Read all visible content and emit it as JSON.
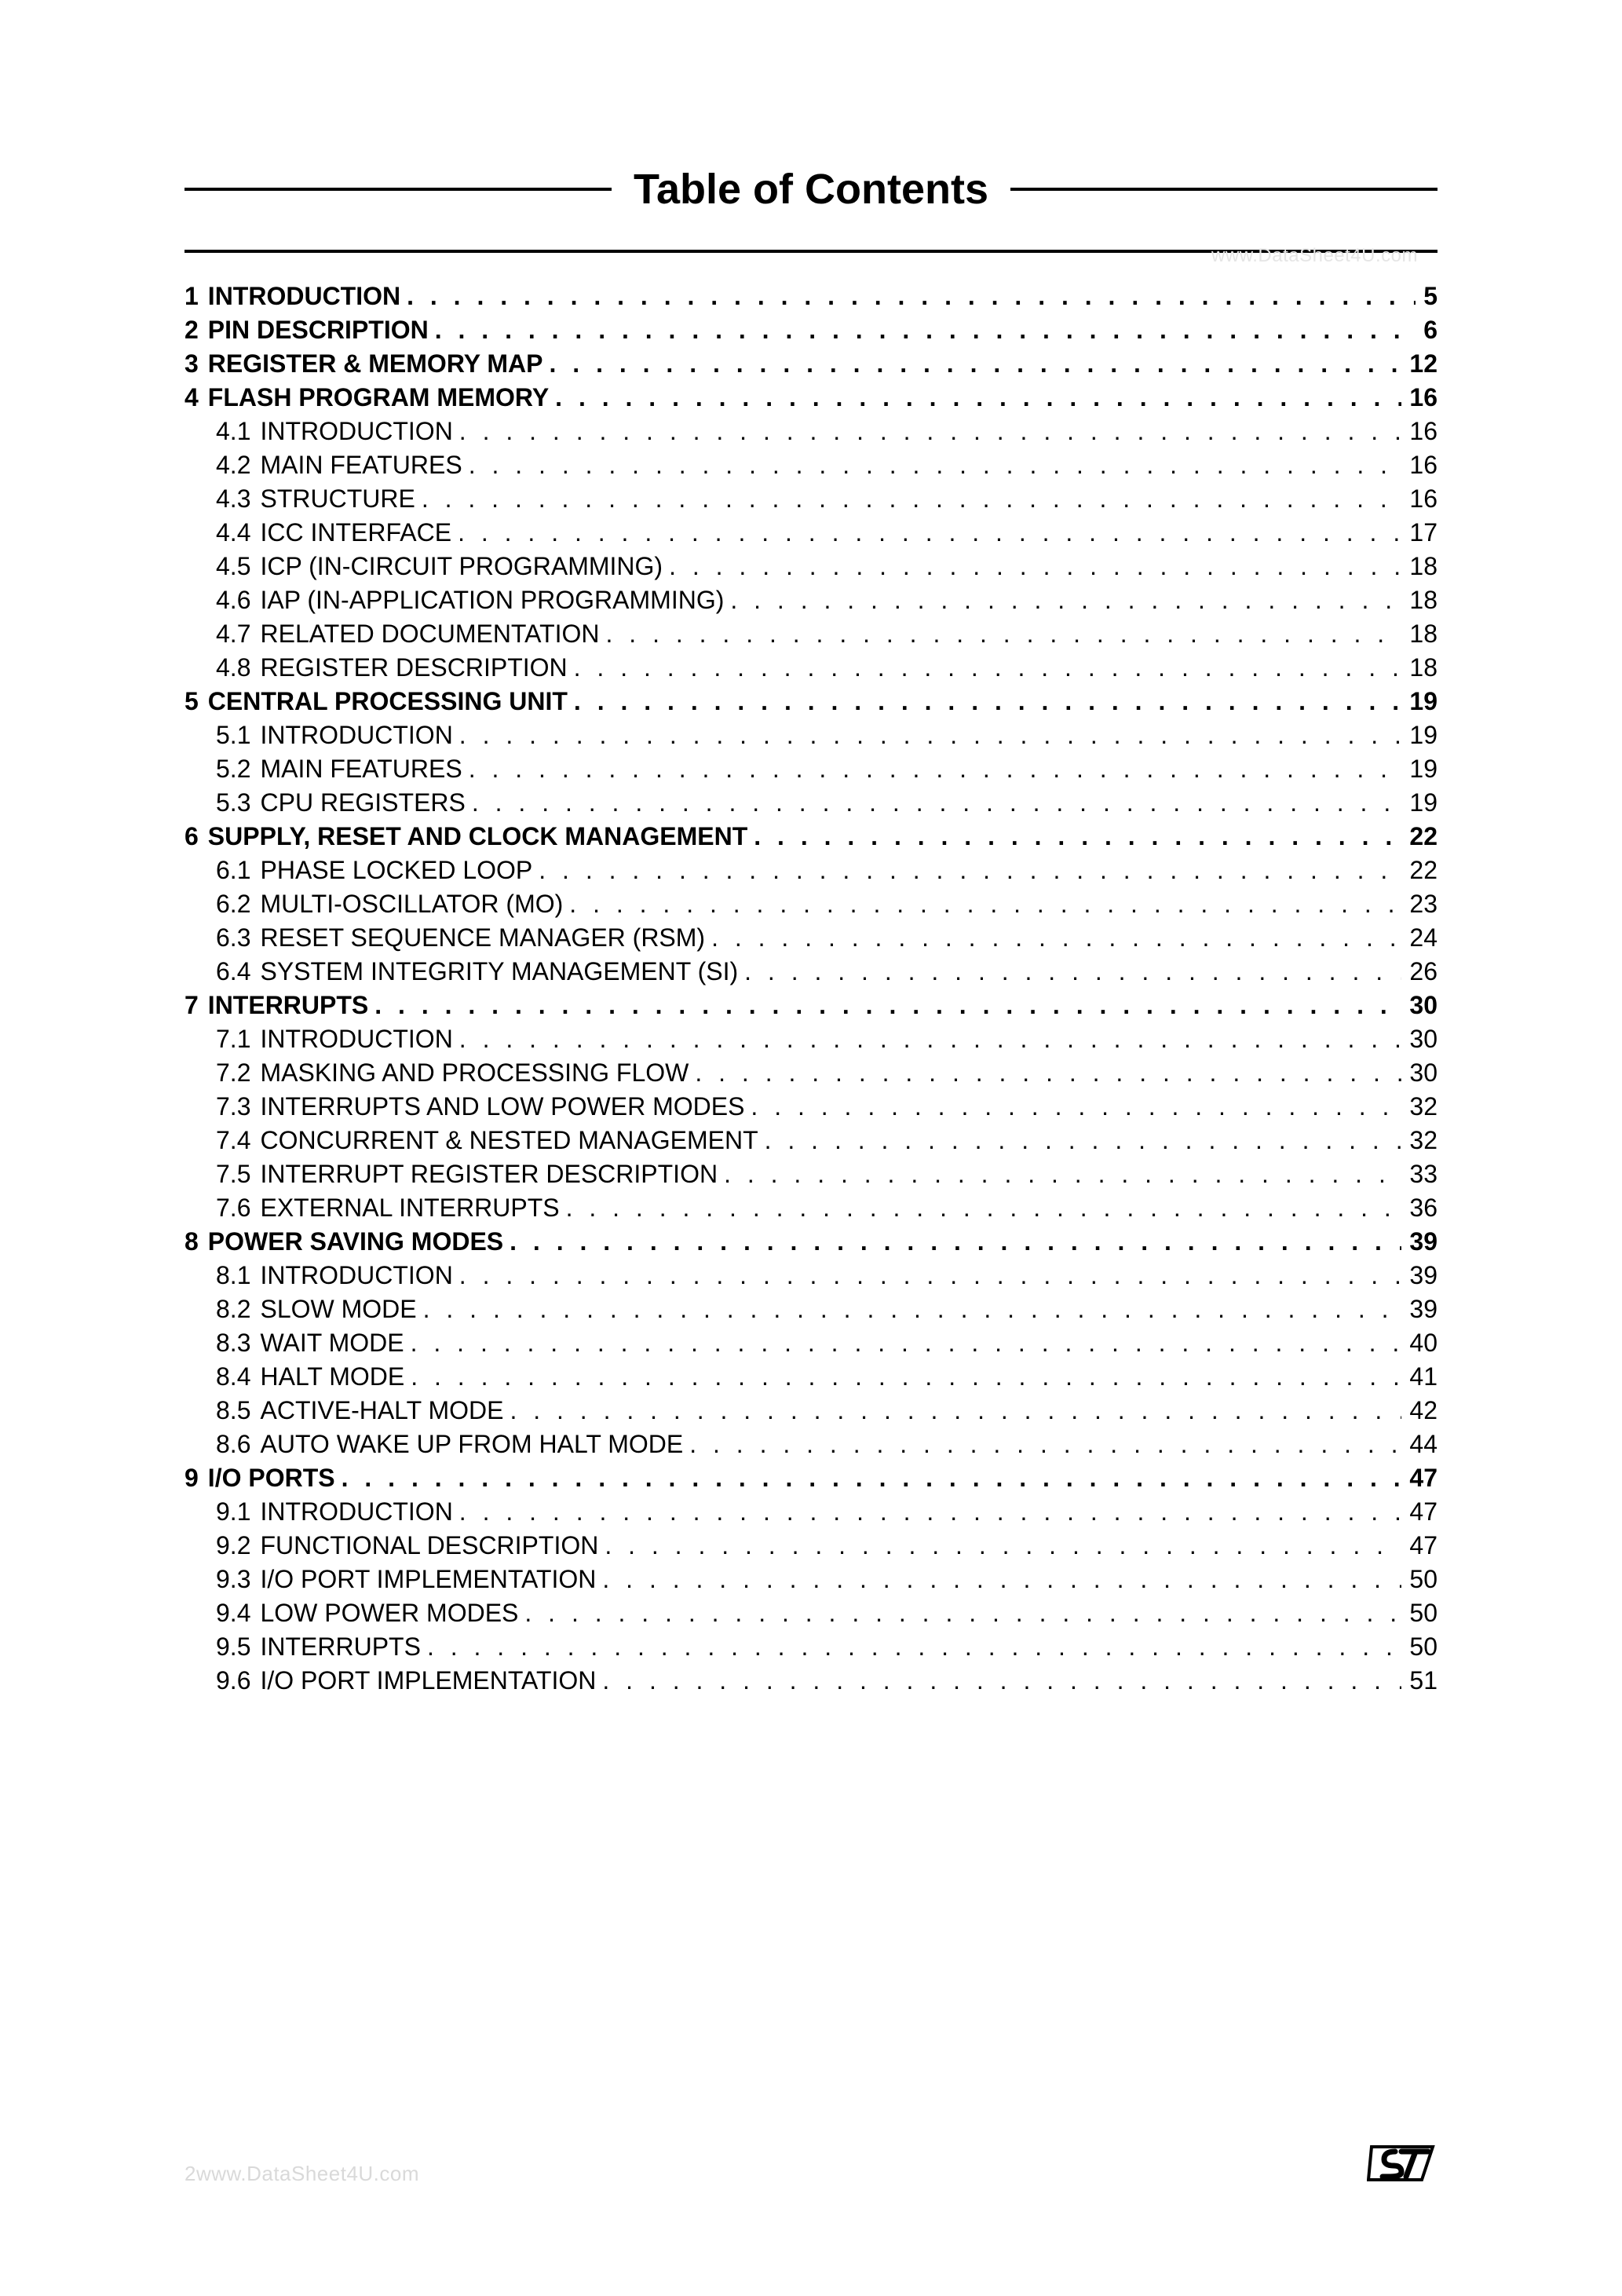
{
  "title": "Table of Contents",
  "watermark_top": "www.DataSheet4U.com",
  "footer_left": "2www.DataSheet4U.com",
  "colors": {
    "text": "#000000",
    "background": "#ffffff",
    "watermark": "#e5e5e5",
    "footer_text": "#d9d9d9",
    "rule": "#000000",
    "logo_fill": "#ffffff",
    "logo_stroke": "#000000"
  },
  "typography": {
    "title_fontsize_pt": 18,
    "body_fontsize_pt": 10,
    "font_family": "Arial, Helvetica, sans-serif"
  },
  "toc": [
    {
      "level": 0,
      "num": "1",
      "label": "INTRODUCTION",
      "page": "5",
      "bold": true
    },
    {
      "level": 0,
      "num": "2",
      "label": "PIN DESCRIPTION",
      "page": "6",
      "bold": true
    },
    {
      "level": 0,
      "num": "3",
      "label": "REGISTER & MEMORY MAP",
      "page": "12",
      "bold": true
    },
    {
      "level": 0,
      "num": "4",
      "label": "FLASH PROGRAM MEMORY",
      "page": "16",
      "bold": true
    },
    {
      "level": 1,
      "num": "4.1",
      "label": "INTRODUCTION",
      "page": "16",
      "bold": false
    },
    {
      "level": 1,
      "num": "4.2",
      "label": "MAIN FEATURES",
      "page": "16",
      "bold": false
    },
    {
      "level": 1,
      "num": "4.3",
      "label": "STRUCTURE",
      "page": "16",
      "bold": false
    },
    {
      "level": 1,
      "num": "4.4",
      "label": "ICC INTERFACE",
      "page": "17",
      "bold": false
    },
    {
      "level": 1,
      "num": "4.5",
      "label": "ICP (IN-CIRCUIT PROGRAMMING)",
      "page": "18",
      "bold": false
    },
    {
      "level": 1,
      "num": "4.6",
      "label": "IAP (IN-APPLICATION PROGRAMMING)",
      "page": "18",
      "bold": false
    },
    {
      "level": 1,
      "num": "4.7",
      "label": "RELATED DOCUMENTATION",
      "page": "18",
      "bold": false
    },
    {
      "level": 1,
      "num": "4.8",
      "label": "REGISTER DESCRIPTION",
      "page": "18",
      "bold": false
    },
    {
      "level": 0,
      "num": "5",
      "label": "CENTRAL PROCESSING UNIT",
      "page": "19",
      "bold": true
    },
    {
      "level": 1,
      "num": "5.1",
      "label": "INTRODUCTION",
      "page": "19",
      "bold": false
    },
    {
      "level": 1,
      "num": "5.2",
      "label": "MAIN FEATURES",
      "page": "19",
      "bold": false
    },
    {
      "level": 1,
      "num": "5.3",
      "label": "CPU REGISTERS",
      "page": "19",
      "bold": false
    },
    {
      "level": 0,
      "num": "6",
      "label": "SUPPLY, RESET AND CLOCK MANAGEMENT",
      "page": "22",
      "bold": true
    },
    {
      "level": 1,
      "num": "6.1",
      "label": "PHASE LOCKED LOOP",
      "page": "22",
      "bold": false
    },
    {
      "level": 1,
      "num": "6.2",
      "label": "MULTI-OSCILLATOR (MO)",
      "page": "23",
      "bold": false
    },
    {
      "level": 1,
      "num": "6.3",
      "label": "RESET SEQUENCE MANAGER (RSM)",
      "page": "24",
      "bold": false
    },
    {
      "level": 1,
      "num": "6.4",
      "label": "SYSTEM INTEGRITY MANAGEMENT (SI)",
      "page": "26",
      "bold": false
    },
    {
      "level": 0,
      "num": "7",
      "label": "INTERRUPTS",
      "page": "30",
      "bold": true
    },
    {
      "level": 1,
      "num": "7.1",
      "label": "INTRODUCTION",
      "page": "30",
      "bold": false
    },
    {
      "level": 1,
      "num": "7.2",
      "label": "MASKING AND PROCESSING FLOW",
      "page": "30",
      "bold": false
    },
    {
      "level": 1,
      "num": "7.3",
      "label": "INTERRUPTS AND LOW POWER MODES",
      "page": "32",
      "bold": false
    },
    {
      "level": 1,
      "num": "7.4",
      "label": "CONCURRENT & NESTED MANAGEMENT",
      "page": "32",
      "bold": false
    },
    {
      "level": 1,
      "num": "7.5",
      "label": "INTERRUPT REGISTER DESCRIPTION",
      "page": "33",
      "bold": false
    },
    {
      "level": 1,
      "num": "7.6",
      "label": "EXTERNAL INTERRUPTS",
      "page": "36",
      "bold": false
    },
    {
      "level": 0,
      "num": "8",
      "label": "POWER SAVING MODES",
      "page": "39",
      "bold": true
    },
    {
      "level": 1,
      "num": "8.1",
      "label": "INTRODUCTION",
      "page": "39",
      "bold": false
    },
    {
      "level": 1,
      "num": "8.2",
      "label": "SLOW MODE",
      "page": "39",
      "bold": false
    },
    {
      "level": 1,
      "num": "8.3",
      "label": "WAIT MODE",
      "page": "40",
      "bold": false
    },
    {
      "level": 1,
      "num": "8.4",
      "label": "HALT MODE",
      "page": "41",
      "bold": false
    },
    {
      "level": 1,
      "num": "8.5",
      "label": "ACTIVE-HALT MODE",
      "page": "42",
      "bold": false
    },
    {
      "level": 1,
      "num": "8.6",
      "label": "AUTO WAKE UP FROM HALT MODE",
      "page": "44",
      "bold": false
    },
    {
      "level": 0,
      "num": "9",
      "label": "I/O PORTS",
      "page": "47",
      "bold": true
    },
    {
      "level": 1,
      "num": "9.1",
      "label": "INTRODUCTION",
      "page": "47",
      "bold": false
    },
    {
      "level": 1,
      "num": "9.2",
      "label": "FUNCTIONAL DESCRIPTION",
      "page": "47",
      "bold": false
    },
    {
      "level": 1,
      "num": "9.3",
      "label": "I/O PORT IMPLEMENTATION",
      "page": "50",
      "bold": false
    },
    {
      "level": 1,
      "num": "9.4",
      "label": "LOW POWER MODES",
      "page": "50",
      "bold": false
    },
    {
      "level": 1,
      "num": "9.5",
      "label": "INTERRUPTS",
      "page": "50",
      "bold": false
    },
    {
      "level": 1,
      "num": "9.6",
      "label": "I/O PORT IMPLEMENTATION",
      "page": "51",
      "bold": false
    }
  ]
}
